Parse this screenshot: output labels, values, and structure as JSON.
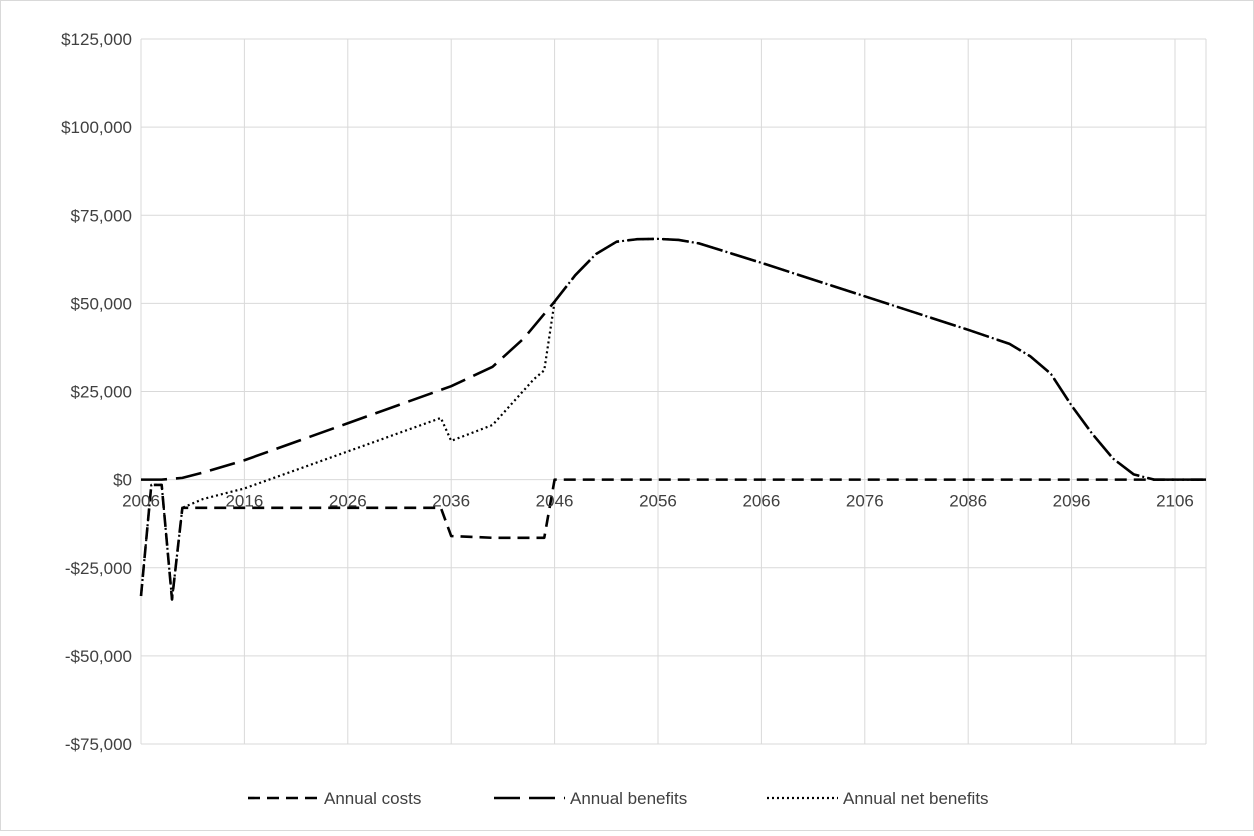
{
  "chart_data": {
    "type": "line",
    "title": "",
    "xlabel": "",
    "ylabel": "",
    "xlim": [
      2006,
      2109
    ],
    "ylim": [
      -75000,
      125000
    ],
    "grid": true,
    "legend_position": "bottom",
    "y_ticks": [
      {
        "value": 125000,
        "label": "$125,000"
      },
      {
        "value": 100000,
        "label": "$100,000"
      },
      {
        "value": 75000,
        "label": "$75,000"
      },
      {
        "value": 50000,
        "label": "$50,000"
      },
      {
        "value": 25000,
        "label": "$25,000"
      },
      {
        "value": 0,
        "label": "$0"
      },
      {
        "value": -25000,
        "label": "-$25,000"
      },
      {
        "value": -50000,
        "label": "-$50,000"
      },
      {
        "value": -75000,
        "label": "-$75,000"
      }
    ],
    "x_ticks": [
      {
        "value": 2006,
        "label": "2006"
      },
      {
        "value": 2016,
        "label": "2016"
      },
      {
        "value": 2026,
        "label": "2026"
      },
      {
        "value": 2036,
        "label": "2036"
      },
      {
        "value": 2046,
        "label": "2046"
      },
      {
        "value": 2056,
        "label": "2056"
      },
      {
        "value": 2066,
        "label": "2066"
      },
      {
        "value": 2076,
        "label": "2076"
      },
      {
        "value": 2086,
        "label": "2086"
      },
      {
        "value": 2096,
        "label": "2096"
      },
      {
        "value": 2106,
        "label": "2106"
      }
    ],
    "series": [
      {
        "name": "Annual costs",
        "dash": "dash",
        "points": [
          [
            2006,
            -33000
          ],
          [
            2007,
            -1500
          ],
          [
            2008,
            -1500
          ],
          [
            2009,
            -34000
          ],
          [
            2010,
            -8000
          ],
          [
            2015,
            -8000
          ],
          [
            2020,
            -8000
          ],
          [
            2025,
            -8000
          ],
          [
            2030,
            -8000
          ],
          [
            2035,
            -8000
          ],
          [
            2036,
            -16000
          ],
          [
            2040,
            -16500
          ],
          [
            2045,
            -16500
          ],
          [
            2046,
            0
          ],
          [
            2056,
            0
          ],
          [
            2066,
            0
          ],
          [
            2076,
            0
          ],
          [
            2086,
            0
          ],
          [
            2096,
            0
          ],
          [
            2109,
            0
          ]
        ]
      },
      {
        "name": "Annual benefits",
        "dash": "longdash",
        "points": [
          [
            2006,
            0
          ],
          [
            2008,
            0
          ],
          [
            2010,
            500
          ],
          [
            2012,
            2000
          ],
          [
            2016,
            5500
          ],
          [
            2026,
            16000
          ],
          [
            2036,
            26500
          ],
          [
            2040,
            32000
          ],
          [
            2043,
            40000
          ],
          [
            2046,
            50500
          ],
          [
            2048,
            58000
          ],
          [
            2050,
            64000
          ],
          [
            2052,
            67500
          ],
          [
            2054,
            68200
          ],
          [
            2056,
            68300
          ],
          [
            2058,
            68000
          ],
          [
            2060,
            67000
          ],
          [
            2066,
            61500
          ],
          [
            2076,
            52000
          ],
          [
            2086,
            42500
          ],
          [
            2090,
            38500
          ],
          [
            2092,
            35000
          ],
          [
            2094,
            30000
          ],
          [
            2096,
            21000
          ],
          [
            2098,
            13000
          ],
          [
            2100,
            6000
          ],
          [
            2102,
            1500
          ],
          [
            2104,
            0
          ],
          [
            2109,
            0
          ]
        ]
      },
      {
        "name": "Annual net benefits",
        "dash": "dot",
        "points": [
          [
            2006,
            -33000
          ],
          [
            2007,
            -1500
          ],
          [
            2008,
            -1500
          ],
          [
            2009,
            -34000
          ],
          [
            2010,
            -8000
          ],
          [
            2012,
            -5500
          ],
          [
            2016,
            -2500
          ],
          [
            2026,
            8000
          ],
          [
            2035,
            17500
          ],
          [
            2036,
            11000
          ],
          [
            2040,
            15500
          ],
          [
            2044,
            28500
          ],
          [
            2045,
            31000
          ],
          [
            2046,
            50500
          ],
          [
            2048,
            58000
          ],
          [
            2050,
            64000
          ],
          [
            2052,
            67500
          ],
          [
            2054,
            68200
          ],
          [
            2056,
            68300
          ],
          [
            2058,
            68000
          ],
          [
            2060,
            67000
          ],
          [
            2066,
            61500
          ],
          [
            2076,
            52000
          ],
          [
            2086,
            42500
          ],
          [
            2090,
            38500
          ],
          [
            2092,
            35000
          ],
          [
            2094,
            30000
          ],
          [
            2096,
            21000
          ],
          [
            2098,
            13000
          ],
          [
            2100,
            6000
          ],
          [
            2102,
            1500
          ],
          [
            2104,
            0
          ],
          [
            2109,
            0
          ]
        ]
      }
    ]
  }
}
